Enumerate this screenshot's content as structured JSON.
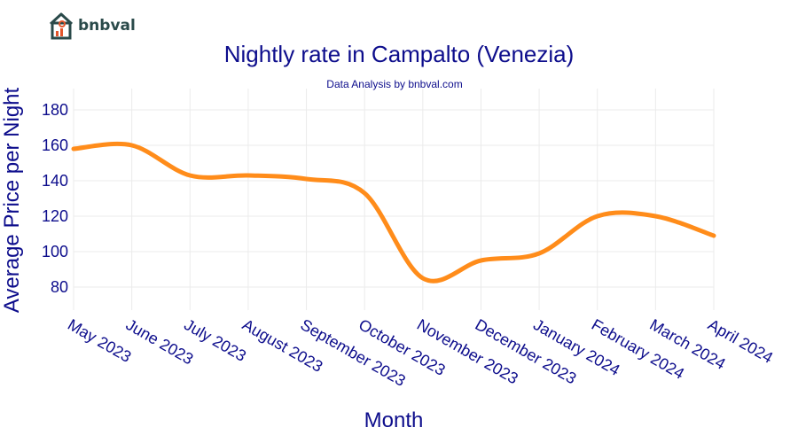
{
  "brand": {
    "name": "bnbval",
    "logo_icon": "house-chart-icon"
  },
  "colors": {
    "line": "#ff8c1a",
    "text": "#0d0d8c",
    "grid": "#ebebeb"
  },
  "chart_data": {
    "type": "line",
    "title": "Nightly rate in Campalto (Venezia)",
    "subtitle": "Data Analysis by bnbval.com",
    "xlabel": "Month",
    "ylabel": "Average Price per Night",
    "categories": [
      "May 2023",
      "June 2023",
      "July 2023",
      "August 2023",
      "September 2023",
      "October 2023",
      "November 2023",
      "December 2023",
      "January 2024",
      "February 2024",
      "March 2024",
      "April 2024"
    ],
    "series": [
      {
        "values": [
          158,
          160,
          143,
          143,
          141,
          133,
          85,
          95,
          99,
          120,
          120,
          109
        ]
      }
    ],
    "ylim": [
      67,
      192
    ],
    "yticks": [
      80,
      100,
      120,
      140,
      160,
      180
    ],
    "grid": true,
    "smooth": true,
    "legend": "none"
  }
}
